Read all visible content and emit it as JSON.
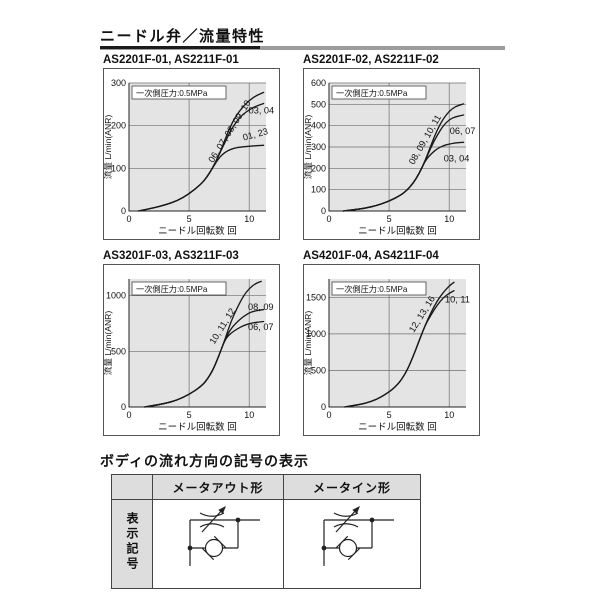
{
  "page": {
    "title": "ニードル弁／流量特性"
  },
  "section": {
    "title": "ボディの流れ方向の記号の表示"
  },
  "symbol_table": {
    "row_header": "表示記号",
    "columns": [
      "メータアウト形",
      "メータイン形"
    ],
    "symbols": [
      "flow-control-meter-out-symbol",
      "flow-control-meter-in-symbol"
    ]
  },
  "colors": {
    "plot_background": "#e4e4e4",
    "grid_line": "#6e6e6e",
    "curve": "#1a1a1a",
    "rule_gray": "#9c9c9c",
    "table_header_bg": "#dddddd"
  },
  "chart_data": [
    {
      "type": "line",
      "title": "AS2201F-01, AS2211F-01",
      "annotation": "一次側圧力:0.5MPa",
      "xlabel": "ニードル回転数 回",
      "ylabel": "流量 L/min(ANR)",
      "xlim": [
        0,
        11.4
      ],
      "ylim": [
        0,
        300
      ],
      "xticks": [
        0,
        5,
        10
      ],
      "yticks": [
        0,
        100,
        200,
        300
      ],
      "series": [
        {
          "name": "06, 07, 08, 09, 10",
          "points": [
            [
              0.8,
              0
            ],
            [
              2,
              7
            ],
            [
              3,
              14
            ],
            [
              4,
              24
            ],
            [
              5,
              40
            ],
            [
              6,
              63
            ],
            [
              6.5,
              80
            ],
            [
              7,
              103
            ],
            [
              7.5,
              132
            ],
            [
              8,
              168
            ],
            [
              8.5,
              202
            ],
            [
              9,
              227
            ],
            [
              9.5,
              245
            ],
            [
              10,
              259
            ],
            [
              10.5,
              269
            ],
            [
              11.2,
              278
            ]
          ],
          "label": {
            "x": 7.0,
            "y": 112,
            "rotate": -58
          }
        },
        {
          "name": "03, 04",
          "points": [
            [
              0.8,
              0
            ],
            [
              2,
              7
            ],
            [
              3,
              14
            ],
            [
              4,
              24
            ],
            [
              5,
              40
            ],
            [
              6,
              63
            ],
            [
              6.5,
              80
            ],
            [
              7,
              103
            ],
            [
              7.5,
              132
            ],
            [
              8,
              162
            ],
            [
              8.5,
              190
            ],
            [
              9,
              212
            ],
            [
              9.5,
              227
            ],
            [
              10,
              237
            ],
            [
              10.5,
              245
            ],
            [
              11.2,
              252
            ]
          ],
          "label": {
            "x": 9.95,
            "y": 228,
            "rotate": 0
          }
        },
        {
          "name": "01, 23",
          "points": [
            [
              0.8,
              0
            ],
            [
              2,
              7
            ],
            [
              3,
              14
            ],
            [
              4,
              24
            ],
            [
              5,
              40
            ],
            [
              6,
              63
            ],
            [
              6.5,
              80
            ],
            [
              7,
              103
            ],
            [
              7.5,
              125
            ],
            [
              8,
              138
            ],
            [
              8.5,
              145
            ],
            [
              9,
              149
            ],
            [
              10,
              152
            ],
            [
              11.2,
              154
            ]
          ],
          "label": {
            "x": 9.55,
            "y": 165,
            "rotate": -15
          }
        }
      ]
    },
    {
      "type": "line",
      "title": "AS2201F-02, AS2211F-02",
      "annotation": "一次側圧力:0.5MPa",
      "xlabel": "ニードル回転数 回",
      "ylabel": "流量 L/min(ANR)",
      "xlim": [
        0,
        11.4
      ],
      "ylim": [
        0,
        600
      ],
      "xticks": [
        0,
        5,
        10
      ],
      "yticks": [
        0,
        100,
        200,
        300,
        400,
        500,
        600
      ],
      "series": [
        {
          "name": "08, 09, 10, 11",
          "points": [
            [
              1.2,
              0
            ],
            [
              2,
              5
            ],
            [
              3,
              13
            ],
            [
              4,
              26
            ],
            [
              5,
              46
            ],
            [
              6,
              75
            ],
            [
              6.5,
              98
            ],
            [
              7,
              130
            ],
            [
              7.5,
              175
            ],
            [
              8,
              235
            ],
            [
              8.5,
              310
            ],
            [
              9,
              380
            ],
            [
              9.5,
              432
            ],
            [
              10,
              468
            ],
            [
              10.5,
              490
            ],
            [
              11.2,
              502
            ]
          ],
          "label": {
            "x": 7.05,
            "y": 215,
            "rotate": -60
          }
        },
        {
          "name": "06, 07",
          "points": [
            [
              1.2,
              0
            ],
            [
              2,
              5
            ],
            [
              3,
              13
            ],
            [
              4,
              26
            ],
            [
              5,
              46
            ],
            [
              6,
              75
            ],
            [
              6.5,
              98
            ],
            [
              7,
              130
            ],
            [
              7.5,
              175
            ],
            [
              8,
              235
            ],
            [
              8.5,
              300
            ],
            [
              9,
              355
            ],
            [
              9.5,
              400
            ],
            [
              10,
              428
            ],
            [
              10.5,
              442
            ],
            [
              11.2,
              450
            ]
          ],
          "label": {
            "x": 10.05,
            "y": 362,
            "rotate": 0
          }
        },
        {
          "name": "03, 04",
          "points": [
            [
              1.2,
              0
            ],
            [
              2,
              5
            ],
            [
              3,
              13
            ],
            [
              4,
              26
            ],
            [
              5,
              46
            ],
            [
              6,
              75
            ],
            [
              6.5,
              98
            ],
            [
              7,
              130
            ],
            [
              7.5,
              175
            ],
            [
              8,
              235
            ],
            [
              8.5,
              268
            ],
            [
              9,
              292
            ],
            [
              9.5,
              306
            ],
            [
              10,
              314
            ],
            [
              10.5,
              319
            ],
            [
              11.2,
              322
            ]
          ],
          "label": {
            "x": 9.55,
            "y": 232,
            "rotate": 0
          }
        }
      ]
    },
    {
      "type": "line",
      "title": "AS3201F-03, AS3211F-03",
      "annotation": "一次側圧力:0.5MPa",
      "xlabel": "ニードル回転数 回",
      "ylabel": "流量 L/min(ANR)",
      "xlim": [
        0,
        11.4
      ],
      "ylim": [
        0,
        1150
      ],
      "xticks": [
        0,
        5,
        10
      ],
      "yticks": [
        0,
        500,
        1000
      ],
      "series": [
        {
          "name": "10, 11, 12",
          "points": [
            [
              1.3,
              0
            ],
            [
              2,
              12
            ],
            [
              3,
              32
            ],
            [
              4,
              62
            ],
            [
              5,
              112
            ],
            [
              6,
              185
            ],
            [
              6.5,
              245
            ],
            [
              7,
              335
            ],
            [
              7.5,
              465
            ],
            [
              8,
              610
            ],
            [
              8.5,
              770
            ],
            [
              9,
              890
            ],
            [
              9.5,
              995
            ],
            [
              10,
              1065
            ],
            [
              10.5,
              1108
            ],
            [
              11,
              1128
            ]
          ],
          "label": {
            "x": 7.1,
            "y": 560,
            "rotate": -58
          }
        },
        {
          "name": "08, 09",
          "points": [
            [
              1.3,
              0
            ],
            [
              2,
              12
            ],
            [
              3,
              32
            ],
            [
              4,
              62
            ],
            [
              5,
              112
            ],
            [
              6,
              185
            ],
            [
              6.5,
              245
            ],
            [
              7,
              335
            ],
            [
              7.5,
              465
            ],
            [
              8,
              610
            ],
            [
              8.5,
              705
            ],
            [
              9,
              765
            ],
            [
              9.5,
              812
            ],
            [
              10,
              845
            ],
            [
              10.5,
              864
            ],
            [
              11.2,
              875
            ]
          ],
          "label": {
            "x": 9.9,
            "y": 870,
            "rotate": 0
          }
        },
        {
          "name": "06, 07",
          "points": [
            [
              1.3,
              0
            ],
            [
              2,
              12
            ],
            [
              3,
              32
            ],
            [
              4,
              62
            ],
            [
              5,
              112
            ],
            [
              6,
              185
            ],
            [
              6.5,
              245
            ],
            [
              7,
              335
            ],
            [
              7.5,
              465
            ],
            [
              8,
              610
            ],
            [
              8.5,
              665
            ],
            [
              9,
              702
            ],
            [
              9.5,
              730
            ],
            [
              10,
              748
            ],
            [
              10.5,
              760
            ],
            [
              11.2,
              768
            ]
          ],
          "label": {
            "x": 9.9,
            "y": 690,
            "rotate": 0
          }
        }
      ]
    },
    {
      "type": "line",
      "title": "AS4201F-04, AS4211F-04",
      "annotation": "一次側圧力:0.5MPa",
      "xlabel": "ニードル回転数 回",
      "ylabel": "流量 L/min(ANR)",
      "xlim": [
        0,
        11.4
      ],
      "ylim": [
        0,
        1750
      ],
      "xticks": [
        0,
        5,
        10
      ],
      "yticks": [
        0,
        500,
        1000,
        1500
      ],
      "series": [
        {
          "name": "12, 13, 16",
          "points": [
            [
              1.3,
              0
            ],
            [
              2,
              18
            ],
            [
              3,
              48
            ],
            [
              4,
              105
            ],
            [
              5,
              205
            ],
            [
              5.5,
              272
            ],
            [
              6,
              365
            ],
            [
              6.5,
              500
            ],
            [
              7,
              690
            ],
            [
              7.5,
              905
            ],
            [
              8,
              1115
            ],
            [
              8.5,
              1295
            ],
            [
              9,
              1450
            ],
            [
              9.5,
              1565
            ],
            [
              10,
              1655
            ],
            [
              10.4,
              1705
            ]
          ],
          "label": {
            "x": 7.05,
            "y": 1010,
            "rotate": -58
          }
        },
        {
          "name": "10, 11",
          "points": [
            [
              1.3,
              0
            ],
            [
              2,
              18
            ],
            [
              3,
              48
            ],
            [
              4,
              105
            ],
            [
              5,
              205
            ],
            [
              5.5,
              272
            ],
            [
              6,
              365
            ],
            [
              6.5,
              500
            ],
            [
              7,
              690
            ],
            [
              7.5,
              905
            ],
            [
              8,
              1115
            ],
            [
              8.5,
              1260
            ],
            [
              9,
              1395
            ],
            [
              9.5,
              1495
            ],
            [
              10,
              1555
            ],
            [
              10.4,
              1590
            ]
          ],
          "label": {
            "x": 9.65,
            "y": 1430,
            "rotate": 0
          }
        }
      ]
    }
  ]
}
